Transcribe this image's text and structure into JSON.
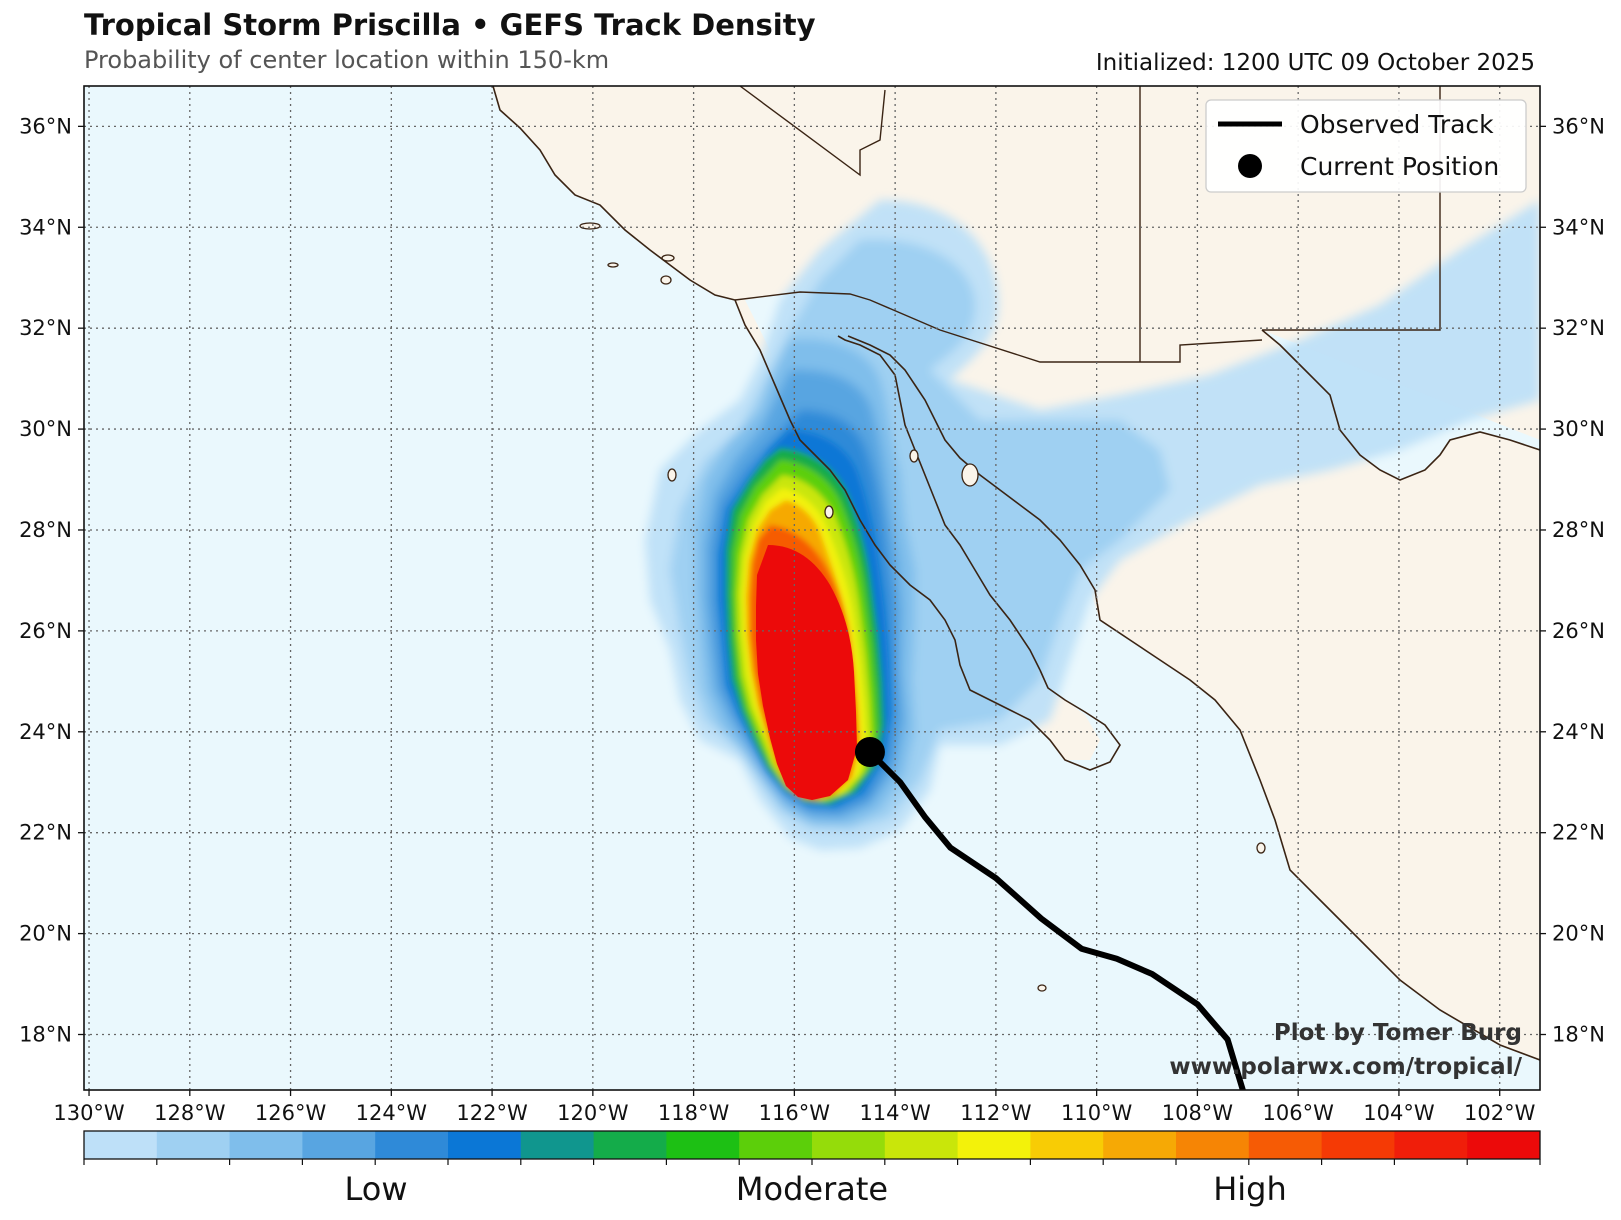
{
  "title": "Tropical Storm Priscilla • GEFS Track Density",
  "subtitle": "Probability of center location within 150-km",
  "initialized": "Initialized: 1200 UTC 09 October 2025",
  "legend": {
    "track_label": "Observed Track",
    "position_label": "Current Position"
  },
  "credit": {
    "line1": "Plot by Tomer Burg",
    "line2": "www.polarwx.com/tropical/"
  },
  "axes": {
    "lon_labels": [
      "130°W",
      "128°W",
      "126°W",
      "124°W",
      "122°W",
      "120°W",
      "118°W",
      "116°W",
      "114°W",
      "112°W",
      "110°W",
      "108°W",
      "106°W",
      "104°W",
      "102°W"
    ],
    "lat_labels": [
      "18°N",
      "20°N",
      "22°N",
      "24°N",
      "26°N",
      "28°N",
      "30°N",
      "32°N",
      "34°N",
      "36°N"
    ],
    "lon_range": [
      -130.1,
      -101.2
    ],
    "lat_range": [
      16.9,
      36.8
    ]
  },
  "colorbar": {
    "colors": [
      "#bee0f8",
      "#9fd0f2",
      "#7fbeeb",
      "#58a5e1",
      "#2f8ad8",
      "#0b77d6",
      "#10968e",
      "#14ac4a",
      "#1dc014",
      "#5ccf0a",
      "#95dc0a",
      "#c9e60a",
      "#f3f20a",
      "#f8cc05",
      "#f6a905",
      "#f68505",
      "#f65b05",
      "#f53a05",
      "#f01e0a",
      "#ec0a0a"
    ],
    "labels": [
      "Low",
      "Moderate",
      "High"
    ]
  },
  "colors": {
    "ocean": "#eaf8fd",
    "land": "#faf4ea",
    "coast": "#3a2414",
    "track": "#000000"
  },
  "observed_track": [
    [
      -107.1,
      16.9
    ],
    [
      -107.4,
      17.9
    ],
    [
      -108.0,
      18.6
    ],
    [
      -108.9,
      19.2
    ],
    [
      -109.6,
      19.5
    ],
    [
      -110.3,
      19.7
    ],
    [
      -111.1,
      20.3
    ],
    [
      -112.0,
      21.1
    ],
    [
      -112.9,
      21.7
    ],
    [
      -113.4,
      22.3
    ],
    [
      -113.9,
      23.0
    ],
    [
      -114.3,
      23.4
    ],
    [
      -114.5,
      23.6
    ]
  ],
  "current_position": [
    -114.5,
    23.6
  ]
}
